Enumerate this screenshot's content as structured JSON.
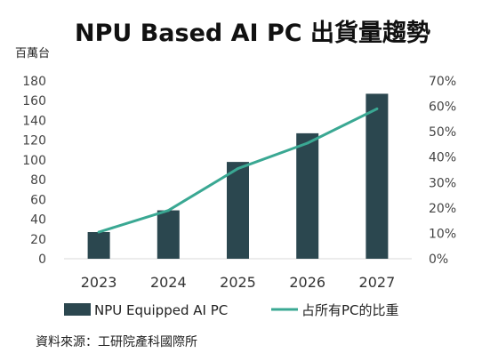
{
  "chart_data": {
    "type": "bar+line",
    "title": "NPU Based AI PC 出貨量趨勢",
    "y_left_unit": "百萬台",
    "categories": [
      "2023",
      "2024",
      "2025",
      "2026",
      "2027"
    ],
    "series": [
      {
        "name": "NPU Equipped AI PC",
        "type": "bar",
        "axis": "left",
        "values": [
          27,
          49,
          98,
          127,
          167
        ]
      },
      {
        "name": "占所有PC的比重",
        "type": "line",
        "axis": "right",
        "values": [
          0.105,
          0.19,
          0.355,
          0.455,
          0.59
        ]
      }
    ],
    "y_left": {
      "min": 0,
      "max": 180,
      "ticks": [
        0,
        20,
        40,
        60,
        80,
        100,
        120,
        140,
        160,
        180
      ]
    },
    "y_right": {
      "min": 0,
      "max": 0.7,
      "ticks": [
        "0%",
        "10%",
        "20%",
        "30%",
        "40%",
        "50%",
        "60%",
        "70%"
      ]
    },
    "legend_position": "bottom",
    "grid": false,
    "colors": {
      "bar": "#2b474f",
      "line": "#3aa893"
    }
  },
  "source": "資料來源：工研院產科國際所"
}
